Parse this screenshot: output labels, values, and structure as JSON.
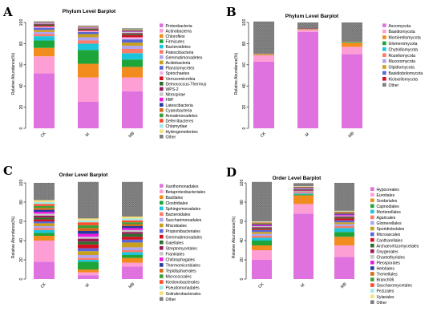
{
  "figure_title": "",
  "chart_data": [
    {
      "type": "bar",
      "stacked": true,
      "panel_label": "A",
      "title": "Phylum Level Barplot",
      "ylabel": "Relative Abundance(%)",
      "xlabel": "",
      "ylim": [
        0,
        100
      ],
      "yticks": [
        0,
        20,
        40,
        60,
        80,
        100
      ],
      "categories": [
        "CK",
        "M",
        "MB"
      ],
      "legend_position": "right",
      "series": [
        {
          "name": "Proteobacteria",
          "color": "#df72df",
          "values": [
            52,
            25,
            35
          ]
        },
        {
          "name": "Actinobacteria",
          "color": "#fd9fd5",
          "values": [
            16,
            23,
            13
          ]
        },
        {
          "name": "Chloroflexi",
          "color": "#f28c1e",
          "values": [
            8,
            13,
            10
          ]
        },
        {
          "name": "Firmicutes",
          "color": "#1da53a",
          "values": [
            7,
            13,
            7
          ]
        },
        {
          "name": "Bacteroidetes",
          "color": "#1cc4dc",
          "values": [
            4,
            6,
            6
          ]
        },
        {
          "name": "Patescibacteria",
          "color": "#fc7a66",
          "values": [
            2,
            3,
            4
          ]
        },
        {
          "name": "Gemmatimonadetes",
          "color": "#b0a4f0",
          "values": [
            2,
            3,
            3
          ]
        },
        {
          "name": "Acidobacteria",
          "color": "#c8a01e",
          "values": [
            2,
            3,
            3
          ]
        },
        {
          "name": "Planctomycetes",
          "color": "#5a66d8",
          "values": [
            2,
            2,
            3
          ]
        },
        {
          "name": "Spirochaetes",
          "color": "#f2b3e8",
          "values": [
            1,
            1,
            2
          ]
        },
        {
          "name": "Verrucomicrobia",
          "color": "#d40f1e",
          "values": [
            1,
            1,
            2
          ]
        },
        {
          "name": "Deinococcus-Thermus",
          "color": "#2e6e2e",
          "values": [
            1,
            1,
            1
          ]
        },
        {
          "name": "WPS-2",
          "color": "#9a1a58",
          "values": [
            0.5,
            0.5,
            1
          ]
        },
        {
          "name": "Nitrospirae",
          "color": "#c8c8c8",
          "values": [
            0.5,
            0.5,
            1
          ]
        },
        {
          "name": "FBP",
          "color": "#ec18e0",
          "values": [
            0.3,
            0.3,
            0.5
          ]
        },
        {
          "name": "Latescibacteria",
          "color": "#243c9e",
          "values": [
            0.3,
            0.3,
            0.5
          ]
        },
        {
          "name": "Cyanobacteria",
          "color": "#d66a18",
          "values": [
            0.3,
            0.3,
            0.5
          ]
        },
        {
          "name": "Armatimonadetes",
          "color": "#3aa038",
          "values": [
            0.2,
            0.2,
            0.3
          ]
        },
        {
          "name": "Deferribacteres",
          "color": "#ff4c2c",
          "values": [
            0.2,
            0.2,
            0.3
          ]
        },
        {
          "name": "Chlamydiae",
          "color": "#a2e8e8",
          "values": [
            0.1,
            0.1,
            0.2
          ]
        },
        {
          "name": "Hydrogenedentes",
          "color": "#f5e080",
          "values": [
            0.1,
            0.1,
            0.2
          ]
        },
        {
          "name": "Other",
          "color": "#808080",
          "values": [
            0.6,
            0.6,
            1
          ]
        }
      ]
    },
    {
      "type": "bar",
      "stacked": true,
      "panel_label": "B",
      "title": "Phylum Level Barplot",
      "ylabel": "Relative Abundance(%)",
      "xlabel": "",
      "ylim": [
        0,
        100
      ],
      "yticks": [
        0,
        20,
        40,
        60,
        80,
        100
      ],
      "categories": [
        "CK",
        "M",
        "MB"
      ],
      "legend_position": "right",
      "series": [
        {
          "name": "Ascomycota",
          "color": "#df72df",
          "values": [
            63,
            91,
            70
          ]
        },
        {
          "name": "Basidiomycota",
          "color": "#fd9fd5",
          "values": [
            6,
            2,
            7
          ]
        },
        {
          "name": "Mortierellomycota",
          "color": "#f28c1e",
          "values": [
            1,
            0.5,
            4
          ]
        },
        {
          "name": "Glomeromycota",
          "color": "#1da53a",
          "values": [
            0.3,
            0.2,
            0.5
          ]
        },
        {
          "name": "Chytridiomycota",
          "color": "#1cc4dc",
          "values": [
            0.2,
            0.1,
            0.3
          ]
        },
        {
          "name": "Rozellomycota",
          "color": "#fc7a66",
          "values": [
            0.1,
            0.1,
            0.2
          ]
        },
        {
          "name": "Mucoromycota",
          "color": "#b0a4f0",
          "values": [
            0.1,
            0.1,
            0.1
          ]
        },
        {
          "name": "Olpidiomycota",
          "color": "#c8a01e",
          "values": [
            0.1,
            0.1,
            0.1
          ]
        },
        {
          "name": "Basidiobolomycota",
          "color": "#5a66d8",
          "values": [
            0.1,
            0.1,
            0.1
          ]
        },
        {
          "name": "Kickxellomycota",
          "color": "#d40f1e",
          "values": [
            0.1,
            0.1,
            0.1
          ]
        },
        {
          "name": "Other",
          "color": "#808080",
          "values": [
            29.9,
            5.7,
            17.6
          ]
        }
      ]
    },
    {
      "type": "bar",
      "stacked": true,
      "panel_label": "C",
      "title": "Order Level Barplot",
      "ylabel": "Relative Abundance(%)",
      "xlabel": "",
      "ylim": [
        0,
        100
      ],
      "yticks": [
        0,
        20,
        40,
        60,
        80,
        100
      ],
      "categories": [
        "CK",
        "M",
        "MB"
      ],
      "legend_position": "right",
      "series": [
        {
          "name": "Xanthomonadales",
          "color": "#df72df",
          "values": [
            18,
            4,
            13
          ]
        },
        {
          "name": "Betaproteobacteriales",
          "color": "#fd9fd5",
          "values": [
            22,
            3,
            4
          ]
        },
        {
          "name": "Bacillales",
          "color": "#f28c1e",
          "values": [
            5,
            3,
            5
          ]
        },
        {
          "name": "Clostridiales",
          "color": "#1da53a",
          "values": [
            3,
            8,
            3
          ]
        },
        {
          "name": "Sphingomonadales",
          "color": "#1cc4dc",
          "values": [
            3,
            2,
            3
          ]
        },
        {
          "name": "Bacteroidales",
          "color": "#fc7a66",
          "values": [
            2,
            2,
            2
          ]
        },
        {
          "name": "Saccharimonadales",
          "color": "#b0a4f0",
          "values": [
            2,
            3,
            3
          ]
        },
        {
          "name": "Rhizobiales",
          "color": "#c8a01e",
          "values": [
            3,
            4,
            5
          ]
        },
        {
          "name": "Propionibacteriales",
          "color": "#5a66d8",
          "values": [
            2,
            3,
            3
          ]
        },
        {
          "name": "Gemmatimonadales",
          "color": "#d40f1e",
          "values": [
            2,
            4,
            3
          ]
        },
        {
          "name": "Gaiellales",
          "color": "#2e6e2e",
          "values": [
            2,
            3,
            3
          ]
        },
        {
          "name": "Streptomycetales",
          "color": "#9a1a58",
          "values": [
            2,
            3,
            2
          ]
        },
        {
          "name": "Frankiales",
          "color": "#c8c8c8",
          "values": [
            2,
            2,
            2
          ]
        },
        {
          "name": "Chitinophagales",
          "color": "#ec18e0",
          "values": [
            2,
            3,
            2
          ]
        },
        {
          "name": "Thermomicrobiales",
          "color": "#243c9e",
          "values": [
            2,
            3,
            2
          ]
        },
        {
          "name": "Tepidisphaerales",
          "color": "#d66a18",
          "values": [
            2,
            3,
            2
          ]
        },
        {
          "name": "Micrococcales",
          "color": "#3aa038",
          "values": [
            2,
            3,
            2
          ]
        },
        {
          "name": "Kiedonobacterales",
          "color": "#ff4c2c",
          "values": [
            2,
            3,
            2
          ]
        },
        {
          "name": "Pseudomonadales",
          "color": "#a2e8e8",
          "values": [
            2,
            2,
            2
          ]
        },
        {
          "name": "Solirubrobacterales",
          "color": "#f5e080",
          "values": [
            2,
            2,
            2
          ]
        },
        {
          "name": "Other",
          "color": "#808080",
          "values": [
            18,
            38,
            36
          ]
        }
      ]
    },
    {
      "type": "bar",
      "stacked": true,
      "panel_label": "D",
      "title": "Order Level Barplot",
      "ylabel": "Relative Abundance(%)",
      "xlabel": "",
      "ylim": [
        0,
        100
      ],
      "yticks": [
        0,
        20,
        40,
        60,
        80,
        100
      ],
      "categories": [
        "CK",
        "M",
        "MB"
      ],
      "legend_position": "right",
      "series": [
        {
          "name": "Hypocreales",
          "color": "#df72df",
          "values": [
            20,
            68,
            23
          ]
        },
        {
          "name": "Eurotiales",
          "color": "#fd9fd5",
          "values": [
            10,
            10,
            12
          ]
        },
        {
          "name": "Sordariales",
          "color": "#f28c1e",
          "values": [
            5,
            9,
            9
          ]
        },
        {
          "name": "Capnodiales",
          "color": "#1da53a",
          "values": [
            5,
            1,
            5
          ]
        },
        {
          "name": "Mortierellales",
          "color": "#1cc4dc",
          "values": [
            3,
            1,
            4
          ]
        },
        {
          "name": "Agaricales",
          "color": "#fc7a66",
          "values": [
            2,
            1,
            2
          ]
        },
        {
          "name": "Glomerellales",
          "color": "#b0a4f0",
          "values": [
            2,
            1,
            2
          ]
        },
        {
          "name": "Sporidiobolales",
          "color": "#c8a01e",
          "values": [
            2,
            0.5,
            2
          ]
        },
        {
          "name": "Microascales",
          "color": "#5a66d8",
          "values": [
            2,
            0.5,
            2
          ]
        },
        {
          "name": "Cantharellales",
          "color": "#d40f1e",
          "values": [
            1,
            0.5,
            2
          ]
        },
        {
          "name": "Archaeorhizomycetales",
          "color": "#2e6e2e",
          "values": [
            1,
            0.5,
            1
          ]
        },
        {
          "name": "Onygenales",
          "color": "#9a1a58",
          "values": [
            1,
            0.5,
            1
          ]
        },
        {
          "name": "Chaetothyriales",
          "color": "#c8c8c8",
          "values": [
            1,
            0.5,
            1
          ]
        },
        {
          "name": "Pleosporales",
          "color": "#ec18e0",
          "values": [
            1,
            0.5,
            1
          ]
        },
        {
          "name": "Helotiales",
          "color": "#243c9e",
          "values": [
            1,
            0.5,
            1
          ]
        },
        {
          "name": "Tremellales",
          "color": "#d66a18",
          "values": [
            1,
            0.5,
            1
          ]
        },
        {
          "name": "Branch06",
          "color": "#3aa038",
          "values": [
            0.5,
            0.3,
            0.5
          ]
        },
        {
          "name": "Saccharomycetales",
          "color": "#ff4c2c",
          "values": [
            0.5,
            0.3,
            0.5
          ]
        },
        {
          "name": "Pezizales",
          "color": "#a2e8e8",
          "values": [
            0.5,
            0.3,
            0.5
          ]
        },
        {
          "name": "Xylariales",
          "color": "#f5e080",
          "values": [
            0.5,
            0.3,
            0.5
          ]
        },
        {
          "name": "Other",
          "color": "#808080",
          "values": [
            41,
            3,
            29
          ]
        }
      ]
    }
  ]
}
